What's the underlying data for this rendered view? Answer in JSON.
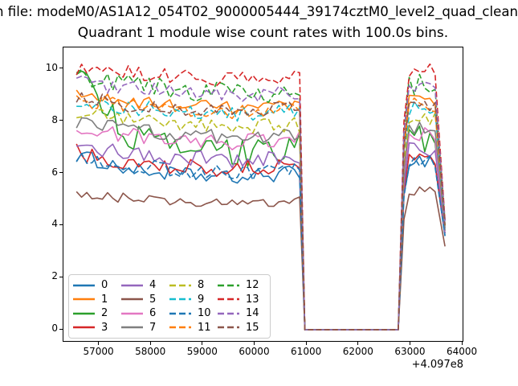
{
  "titles": {
    "file_line": "n file: modeM0/AS1A12_054T02_9000005444_39174cztM0_level2_quad_clean",
    "main": "Quadrant 1 module wise count rates with 100.0s bins."
  },
  "chart_data": {
    "type": "line",
    "title": "Quadrant 1 module wise count rates with 100.0s bins.",
    "xlabel": "",
    "ylabel": "",
    "x_offset_label": "+4.097e8",
    "x_ticks": [
      57000,
      58000,
      59000,
      60000,
      61000,
      62000,
      63000,
      64000
    ],
    "y_ticks": [
      0,
      2,
      4,
      6,
      8,
      10
    ],
    "xlim": [
      56310,
      64030
    ],
    "ylim": [
      -0.49,
      10.83
    ],
    "grid": false,
    "legend_position": "lower left",
    "legend_columns": 4,
    "bin_seconds": 100,
    "segments": {
      "data_start": 56560,
      "plateau_end": 60860,
      "zero_start": 60960,
      "zero_end": 62760,
      "rise_mid": 62870,
      "burst_start": 62970,
      "burst_end": 63560,
      "data_end": 63660
    },
    "anchor_x": [
      56560,
      57100,
      57700,
      58600,
      59600,
      60860
    ],
    "series": [
      {
        "label": "0",
        "color": "#1f77b4",
        "dashed": false,
        "anchors": [
          6.7,
          6.4,
          6.1,
          5.95,
          5.8,
          6.05
        ],
        "burst_level": 6.5,
        "end_value": 3.6,
        "noise": 0.28
      },
      {
        "label": "1",
        "color": "#ff7f0e",
        "dashed": false,
        "anchors": [
          9.0,
          8.85,
          8.7,
          8.6,
          8.5,
          8.55
        ],
        "burst_level": 8.8,
        "end_value": 4.0,
        "noise": 0.25
      },
      {
        "label": "2",
        "color": "#2ca02c",
        "dashed": false,
        "anchors": [
          10.1,
          8.5,
          7.3,
          6.9,
          6.75,
          7.0
        ],
        "burst_level": 7.3,
        "end_value": 3.8,
        "noise": 0.55
      },
      {
        "label": "3",
        "color": "#d62728",
        "dashed": false,
        "anchors": [
          6.8,
          6.6,
          6.45,
          6.2,
          6.25,
          6.2
        ],
        "burst_level": 6.6,
        "end_value": 3.7,
        "noise": 0.35
      },
      {
        "label": "4",
        "color": "#9467bd",
        "dashed": false,
        "anchors": [
          7.05,
          6.9,
          6.75,
          6.6,
          6.5,
          6.6
        ],
        "burst_level": 6.9,
        "end_value": 3.7,
        "noise": 0.3
      },
      {
        "label": "5",
        "color": "#8c564b",
        "dashed": false,
        "anchors": [
          5.2,
          5.1,
          5.05,
          4.9,
          4.8,
          4.95
        ],
        "burst_level": 5.3,
        "end_value": 3.2,
        "noise": 0.18
      },
      {
        "label": "6",
        "color": "#e377c2",
        "dashed": false,
        "anchors": [
          7.8,
          7.6,
          7.45,
          7.3,
          7.2,
          7.35
        ],
        "burst_level": 7.5,
        "end_value": 3.9,
        "noise": 0.3
      },
      {
        "label": "7",
        "color": "#7f7f7f",
        "dashed": false,
        "anchors": [
          8.0,
          7.85,
          7.7,
          7.5,
          7.4,
          7.45
        ],
        "burst_level": 7.7,
        "end_value": 3.9,
        "noise": 0.28
      },
      {
        "label": "8",
        "color": "#bcbd22",
        "dashed": true,
        "anchors": [
          8.35,
          8.2,
          8.05,
          7.9,
          7.8,
          7.85
        ],
        "burst_level": 8.1,
        "end_value": 4.0,
        "noise": 0.3
      },
      {
        "label": "9",
        "color": "#17becf",
        "dashed": true,
        "anchors": [
          8.8,
          8.65,
          8.5,
          8.4,
          8.3,
          8.35
        ],
        "burst_level": 8.5,
        "end_value": 4.0,
        "noise": 0.3
      },
      {
        "label": "10",
        "color": "#1f77b4",
        "dashed": true,
        "anchors": [
          6.5,
          6.4,
          6.25,
          6.1,
          6.0,
          6.1
        ],
        "burst_level": 6.4,
        "end_value": 3.6,
        "noise": 0.3
      },
      {
        "label": "11",
        "color": "#ff7f0e",
        "dashed": true,
        "anchors": [
          8.85,
          8.7,
          8.55,
          8.45,
          8.4,
          8.45
        ],
        "burst_level": 8.6,
        "end_value": 4.1,
        "noise": 0.3
      },
      {
        "label": "12",
        "color": "#2ca02c",
        "dashed": true,
        "anchors": [
          9.85,
          9.6,
          9.4,
          9.2,
          9.05,
          9.15
        ],
        "burst_level": 9.4,
        "end_value": 4.2,
        "noise": 0.4
      },
      {
        "label": "13",
        "color": "#d62728",
        "dashed": true,
        "anchors": [
          10.0,
          9.95,
          9.85,
          9.7,
          9.6,
          9.7
        ],
        "burst_level": 10.0,
        "end_value": 4.2,
        "noise": 0.28
      },
      {
        "label": "14",
        "color": "#9467bd",
        "dashed": true,
        "anchors": [
          9.55,
          9.4,
          9.25,
          9.1,
          9.0,
          9.1
        ],
        "burst_level": 9.4,
        "end_value": 4.1,
        "noise": 0.33
      },
      {
        "label": "15",
        "color": "#8c564b",
        "dashed": true,
        "anchors": [
          8.9,
          8.75,
          8.6,
          8.5,
          8.4,
          8.5
        ],
        "burst_level": 8.7,
        "end_value": 4.0,
        "noise": 0.3
      }
    ]
  }
}
